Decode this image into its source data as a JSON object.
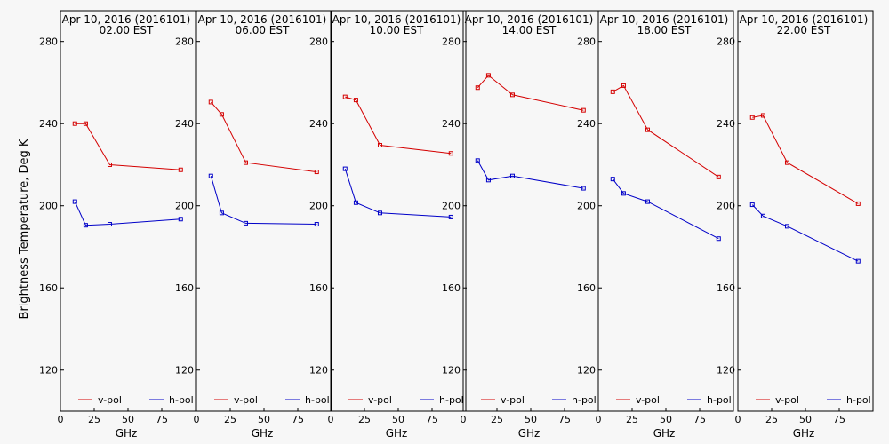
{
  "y_axis_label": "Brightness Temperature, Deg K",
  "colors": {
    "v_pol": "#d40000",
    "h_pol": "#0000c8"
  },
  "chart_data": [
    {
      "type": "line",
      "title": "Apr 10, 2016 (2016101)",
      "subtitle": "02.00 EST",
      "xlabel": "GHz",
      "ylabel": "Brightness Temperature, Deg K",
      "xlim": [
        0,
        100
      ],
      "ylim": [
        100,
        295
      ],
      "xticks": [
        0,
        25,
        50,
        75
      ],
      "yticks": [
        120,
        160,
        200,
        240,
        280
      ],
      "grid": false,
      "legend": "bottom",
      "x": [
        10.7,
        18.7,
        36.5,
        89
      ],
      "series": [
        {
          "name": "v-pol",
          "values": [
            240,
            240,
            220,
            217.5
          ]
        },
        {
          "name": "h-pol",
          "values": [
            202,
            190.5,
            191,
            193.5
          ]
        }
      ]
    },
    {
      "type": "line",
      "title": "Apr 10, 2016 (2016101)",
      "subtitle": "06.00 EST",
      "xlabel": "GHz",
      "ylabel": "",
      "xlim": [
        0,
        100
      ],
      "ylim": [
        100,
        295
      ],
      "xticks": [
        0,
        25,
        50,
        75
      ],
      "yticks": [
        120,
        160,
        200,
        240,
        280
      ],
      "grid": false,
      "legend": "bottom",
      "x": [
        10.7,
        18.7,
        36.5,
        89
      ],
      "series": [
        {
          "name": "v-pol",
          "values": [
            250.5,
            244.5,
            221,
            216.5
          ]
        },
        {
          "name": "h-pol",
          "values": [
            214.5,
            196.5,
            191.5,
            191
          ]
        }
      ]
    },
    {
      "type": "line",
      "title": "Apr 10, 2016 (2016101)",
      "subtitle": "10.00 EST",
      "xlabel": "GHz",
      "ylabel": "",
      "xlim": [
        0,
        100
      ],
      "ylim": [
        100,
        295
      ],
      "xticks": [
        0,
        25,
        50,
        75
      ],
      "yticks": [
        120,
        160,
        200,
        240,
        280
      ],
      "grid": false,
      "legend": "bottom",
      "x": [
        10.7,
        18.7,
        36.5,
        89
      ],
      "series": [
        {
          "name": "v-pol",
          "values": [
            253,
            251.5,
            229.5,
            225.5
          ]
        },
        {
          "name": "h-pol",
          "values": [
            218,
            201.5,
            196.5,
            194.5
          ]
        }
      ]
    },
    {
      "type": "line",
      "title": "Apr 10, 2016 (2016101)",
      "subtitle": "14.00 EST",
      "xlabel": "GHz",
      "ylabel": "",
      "xlim": [
        0,
        100
      ],
      "ylim": [
        100,
        295
      ],
      "xticks": [
        0,
        25,
        50,
        75
      ],
      "yticks": [
        120,
        160,
        200,
        240,
        280
      ],
      "grid": false,
      "legend": "bottom",
      "x": [
        10.7,
        18.7,
        36.5,
        89
      ],
      "series": [
        {
          "name": "v-pol",
          "values": [
            257.5,
            263.5,
            254,
            246.5
          ]
        },
        {
          "name": "h-pol",
          "values": [
            222,
            212.5,
            214.5,
            208.5
          ]
        }
      ]
    },
    {
      "type": "line",
      "title": "Apr 10, 2016 (2016101)",
      "subtitle": "18.00 EST",
      "xlabel": "GHz",
      "ylabel": "",
      "xlim": [
        0,
        100
      ],
      "ylim": [
        100,
        295
      ],
      "xticks": [
        0,
        25,
        50,
        75
      ],
      "yticks": [
        120,
        160,
        200,
        240,
        280
      ],
      "grid": false,
      "legend": "bottom",
      "x": [
        10.7,
        18.7,
        36.5,
        89
      ],
      "series": [
        {
          "name": "v-pol",
          "values": [
            255.5,
            258.5,
            237,
            214
          ]
        },
        {
          "name": "h-pol",
          "values": [
            213,
            206,
            202,
            184
          ]
        }
      ]
    },
    {
      "type": "line",
      "title": "Apr 10, 2016 (2016101)",
      "subtitle": "22.00 EST",
      "xlabel": "GHz",
      "ylabel": "",
      "xlim": [
        0,
        100
      ],
      "ylim": [
        100,
        295
      ],
      "xticks": [
        0,
        25,
        50,
        75
      ],
      "yticks": [
        120,
        160,
        200,
        240,
        280
      ],
      "grid": false,
      "legend": "bottom",
      "x": [
        10.7,
        18.7,
        36.5,
        89
      ],
      "series": [
        {
          "name": "v-pol",
          "values": [
            243,
            244,
            221,
            201
          ]
        },
        {
          "name": "h-pol",
          "values": [
            200.5,
            195,
            190,
            173
          ]
        }
      ]
    }
  ]
}
